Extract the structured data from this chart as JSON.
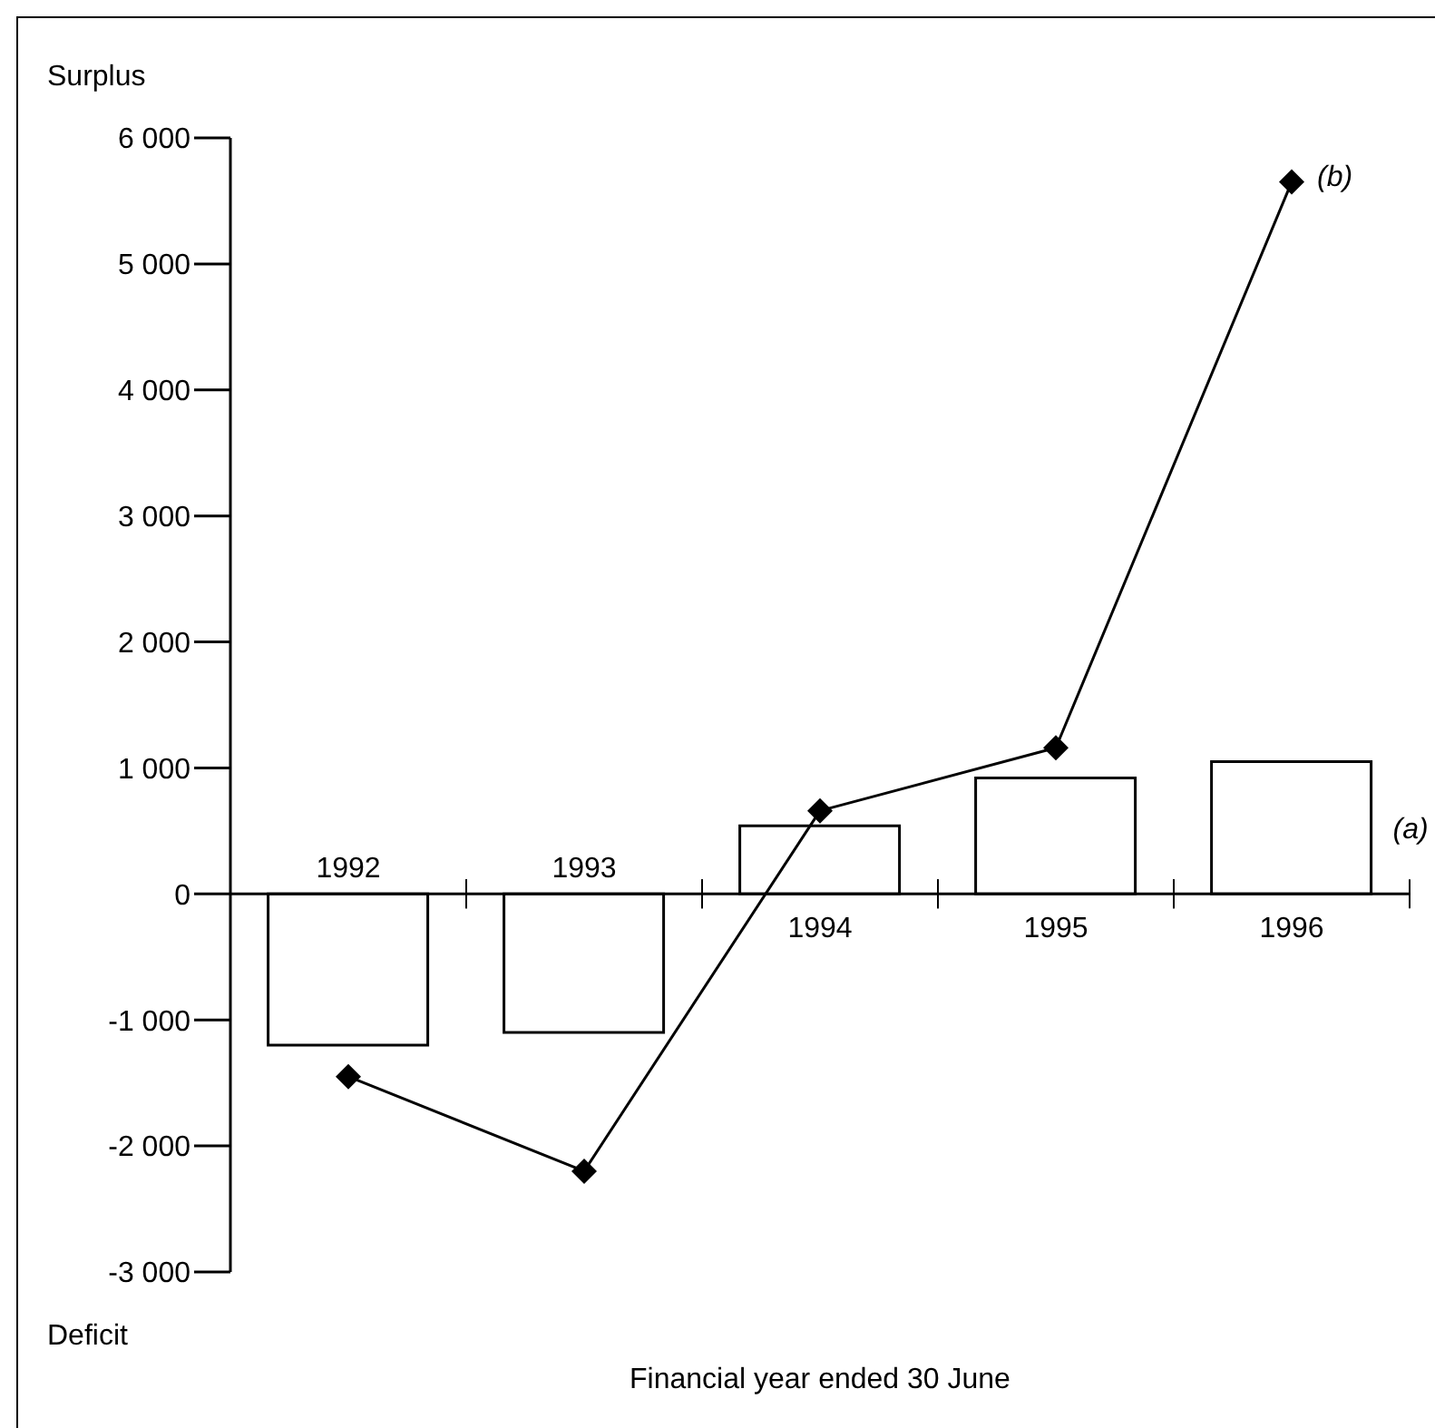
{
  "chart_data": {
    "type": "bar",
    "categories": [
      "1992",
      "1993",
      "1994",
      "1995",
      "1996"
    ],
    "series": [
      {
        "name": "(a)",
        "color": "#ffffff",
        "values": [
          -1200,
          -1100,
          540,
          920,
          1050
        ]
      },
      {
        "name": "(b)",
        "type": "line",
        "color": "#000000",
        "values": [
          -1450,
          -2200,
          660,
          1160,
          5650
        ],
        "marker": "diamond",
        "line_style": "solid"
      }
    ],
    "ylabel": "Surplus",
    "xlabel": "Financial year ended 30 June",
    "annotations": [
      "Deficit"
    ],
    "ylim": [
      -3000,
      6000
    ],
    "yticks": [
      -3000,
      -2000,
      -1000,
      0,
      1000,
      2000,
      3000,
      4000,
      5000,
      6000
    ],
    "grid": false
  }
}
